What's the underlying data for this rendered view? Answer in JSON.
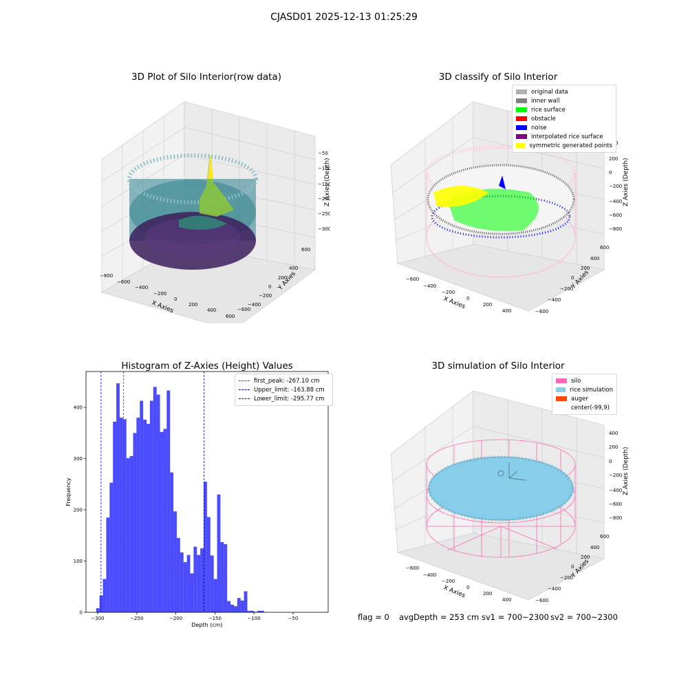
{
  "suptitle": "CJASD01 2025-12-13 01:25:29",
  "plots": {
    "raw": {
      "title": "3D Plot of Silo Interior(row data)",
      "xlabel": "X Axies",
      "ylabel": "Y Axies",
      "zlabel": "Z Axies (Depth)",
      "xticks": [
        "−800",
        "−600",
        "−400",
        "−200",
        "0",
        "200",
        "400",
        "600"
      ],
      "yticks": [
        "600",
        "400",
        "200",
        "0",
        "−200",
        "−400",
        "−600"
      ],
      "zticks": [
        "−50",
        "−100",
        "−150",
        "−200",
        "−250",
        "−300"
      ]
    },
    "classify": {
      "title": "3D classify of Silo Interior",
      "xlabel": "X Axies",
      "ylabel": "Y Axies",
      "zlabel": "Z Axies (Depth)",
      "xticks": [
        "−600",
        "−400",
        "−200",
        "0",
        "200",
        "400"
      ],
      "yticks": [
        "600",
        "400",
        "200",
        "0",
        "−200",
        "−400",
        "−600"
      ],
      "zticks": [
        "400",
        "200",
        "0",
        "−200",
        "−400",
        "−600",
        "−800"
      ],
      "legend": [
        {
          "label": "original data",
          "color": "#b0b0b0"
        },
        {
          "label": "inner wall",
          "color": "#808080"
        },
        {
          "label": "rice surface",
          "color": "#00ff00"
        },
        {
          "label": "obstacle",
          "color": "#ff0000"
        },
        {
          "label": "noise",
          "color": "#0000ff"
        },
        {
          "label": "interpolated rice surface",
          "color": "#800080"
        },
        {
          "label": "symmetric generated points",
          "color": "#ffff00"
        }
      ]
    },
    "simulation": {
      "title": "3D simulation of Silo Interior",
      "xlabel": "X Axies",
      "ylabel": "Y Axies",
      "zlabel": "Z Axies (Depth)",
      "xticks": [
        "−600",
        "−400",
        "−200",
        "0",
        "200",
        "400"
      ],
      "yticks": [
        "600",
        "400",
        "200",
        "0",
        "−200",
        "−400",
        "−600"
      ],
      "zticks": [
        "400",
        "200",
        "0",
        "−200",
        "−400",
        "−600",
        "−800"
      ],
      "legend": [
        {
          "label": "silo",
          "color": "#ff69b4"
        },
        {
          "label": "rice simulation",
          "color": "#87ceeb"
        },
        {
          "label": "auger",
          "color": "#ff4500"
        },
        {
          "label": "center(-99,9)",
          "color": "#ffffff"
        }
      ]
    }
  },
  "chart_data": {
    "type": "bar",
    "title": "Histogram of Z-Axies (Height) Values",
    "xlabel": "Depth (cm)",
    "ylabel": "Frequency",
    "xlim": [
      -315,
      -5
    ],
    "ylim": [
      0,
      470
    ],
    "xticks": [
      -300,
      -250,
      -200,
      -150,
      -100,
      -50
    ],
    "xtick_labels": [
      "−300",
      "−250",
      "−200",
      "−150",
      "−100",
      "−50"
    ],
    "yticks": [
      0,
      100,
      200,
      300,
      400
    ],
    "bar_color": "#0000ff",
    "bin_width": 4.3,
    "bin_start": -302,
    "values": [
      8,
      33,
      65,
      185,
      253,
      372,
      447,
      380,
      377,
      301,
      305,
      350,
      380,
      413,
      376,
      368,
      413,
      440,
      425,
      352,
      358,
      433,
      273,
      197,
      145,
      117,
      98,
      112,
      76,
      128,
      112,
      125,
      255,
      186,
      111,
      65,
      230,
      137,
      133,
      22,
      15,
      12,
      28,
      23,
      41,
      3,
      3,
      1,
      3,
      3
    ],
    "lines": [
      {
        "label": "first_peak: -267.10 cm",
        "x": -267.1,
        "color": "#ff0000"
      },
      {
        "label": "Upper_limit: -163.88 cm",
        "x": -163.88,
        "color": "#00008b"
      },
      {
        "label": "Lower_limit: -295.77 cm",
        "x": -295.77,
        "color": "#0000ff"
      }
    ],
    "legend_position": "top-right"
  },
  "footer": {
    "flag": "flag = 0",
    "avg": "avgDepth = 253 cm",
    "sv1": "sv1 = 700~2300",
    "sv2": "sv2 = 700~2300"
  }
}
